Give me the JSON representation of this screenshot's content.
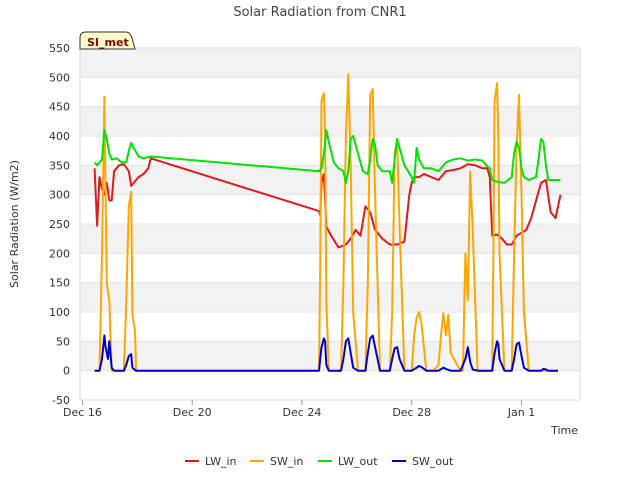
{
  "chart_data": {
    "type": "line",
    "title": "Solar Radiation from CNR1",
    "xlabel": "Time",
    "ylabel": "Solar Radiation (W/m2)",
    "station_label": "SI_met",
    "ylim": [
      -50,
      550
    ],
    "yticks": [
      -50,
      0,
      50,
      100,
      150,
      200,
      250,
      300,
      350,
      400,
      450,
      500,
      550
    ],
    "xlim": [
      -0.1,
      20.4
    ],
    "xticks": [
      {
        "value": 0,
        "label": "Dec 16"
      },
      {
        "value": 4.5,
        "label": "Dec 20"
      },
      {
        "value": 9,
        "label": "Dec 24"
      },
      {
        "value": 13.5,
        "label": "Dec 28"
      },
      {
        "value": 18,
        "label": "Jan 1"
      }
    ],
    "grid": true,
    "legend_position": "bottom",
    "series": [
      {
        "name": "LW_in",
        "color": "#e31a1c",
        "x": [
          0.5,
          0.6,
          0.7,
          0.75,
          0.8,
          0.9,
          1.0,
          1.1,
          1.2,
          1.3,
          1.5,
          1.7,
          1.9,
          2.0,
          2.1,
          2.3,
          2.5,
          2.6,
          2.7,
          2.8,
          9.7,
          9.75,
          9.8,
          9.9,
          10.0,
          10.2,
          10.5,
          10.8,
          11.0,
          11.2,
          11.4,
          11.6,
          11.8,
          12.0,
          12.3,
          12.6,
          12.9,
          13.2,
          13.4,
          13.5,
          13.6,
          13.8,
          14.0,
          14.3,
          14.6,
          14.9,
          15.2,
          15.5,
          15.8,
          16.1,
          16.4,
          16.6,
          16.7,
          16.8,
          17.0,
          17.2,
          17.4,
          17.6,
          17.8,
          18.0,
          18.2,
          18.4,
          18.6,
          18.8,
          19.0,
          19.2,
          19.4,
          19.6
        ],
        "values": [
          345,
          247,
          330,
          320,
          310,
          300,
          320,
          290,
          290,
          340,
          350,
          352,
          340,
          315,
          320,
          330,
          335,
          340,
          345,
          362,
          272,
          265,
          320,
          335,
          245,
          230,
          210,
          215,
          225,
          240,
          230,
          280,
          270,
          240,
          225,
          215,
          215,
          220,
          300,
          320,
          330,
          330,
          335,
          330,
          325,
          340,
          342,
          345,
          352,
          350,
          345,
          345,
          330,
          230,
          232,
          225,
          215,
          215,
          230,
          235,
          240,
          260,
          290,
          320,
          325,
          270,
          260,
          300
        ]
      },
      {
        "name": "SW_in",
        "color": "#ffa500",
        "x": [
          0.5,
          0.7,
          0.8,
          0.9,
          0.95,
          1.0,
          1.05,
          1.1,
          1.2,
          1.3,
          1.5,
          1.7,
          1.8,
          1.9,
          2.0,
          2.05,
          2.1,
          2.15,
          2.2,
          2.3,
          2.5,
          9.6,
          9.7,
          9.75,
          9.8,
          9.9,
          9.95,
          10.0,
          10.1,
          10.3,
          10.6,
          10.7,
          10.8,
          10.9,
          11.0,
          11.1,
          11.3,
          11.6,
          11.7,
          11.8,
          11.9,
          12.0,
          12.2,
          12.6,
          12.7,
          12.8,
          12.9,
          13.0,
          13.2,
          13.5,
          13.6,
          13.7,
          13.8,
          13.9,
          14.1,
          14.4,
          14.6,
          14.7,
          14.8,
          14.9,
          15.0,
          15.1,
          15.5,
          15.6,
          15.7,
          15.8,
          15.9,
          16.0,
          16.2,
          16.8,
          16.85,
          16.9,
          17.0,
          17.05,
          17.1,
          17.3,
          17.6,
          17.7,
          17.8,
          17.9,
          18.0,
          18.1,
          18.3,
          18.7,
          18.8,
          18.9,
          19.0,
          19.1,
          19.2,
          19.3,
          19.5
        ],
        "values": [
          0,
          0,
          200,
          467,
          300,
          150,
          135,
          120,
          0,
          0,
          0,
          0,
          120,
          280,
          305,
          100,
          80,
          70,
          0,
          0,
          0,
          0,
          0,
          180,
          460,
          473,
          400,
          120,
          0,
          0,
          0,
          150,
          400,
          505,
          350,
          100,
          0,
          0,
          150,
          470,
          480,
          300,
          0,
          0,
          100,
          370,
          393,
          250,
          0,
          0,
          60,
          90,
          100,
          80,
          0,
          0,
          10,
          60,
          98,
          60,
          95,
          30,
          0,
          0,
          200,
          120,
          340,
          240,
          0,
          0,
          200,
          460,
          490,
          400,
          200,
          0,
          0,
          200,
          380,
          470,
          300,
          100,
          0,
          0,
          0,
          0,
          0,
          0,
          0,
          0,
          0
        ]
      },
      {
        "name": "LW_out",
        "color": "#00e400",
        "x": [
          0.5,
          0.6,
          0.8,
          0.9,
          1.0,
          1.1,
          1.2,
          1.4,
          1.6,
          1.8,
          1.9,
          2.0,
          2.1,
          2.3,
          2.5,
          2.8,
          9.7,
          9.8,
          9.9,
          10.0,
          10.1,
          10.3,
          10.5,
          10.7,
          10.8,
          10.9,
          11.0,
          11.1,
          11.3,
          11.5,
          11.7,
          11.8,
          11.9,
          12.0,
          12.1,
          12.3,
          12.6,
          12.7,
          12.8,
          12.9,
          13.0,
          13.2,
          13.5,
          13.6,
          13.7,
          13.8,
          14.0,
          14.3,
          14.6,
          14.9,
          15.2,
          15.5,
          15.8,
          16.1,
          16.4,
          16.6,
          16.7,
          16.8,
          17.0,
          17.3,
          17.6,
          17.7,
          17.8,
          17.9,
          18.0,
          18.1,
          18.3,
          18.6,
          18.7,
          18.8,
          18.9,
          19.0,
          19.1,
          19.3,
          19.5,
          19.6
        ],
        "values": [
          355,
          350,
          360,
          410,
          395,
          370,
          360,
          362,
          355,
          355,
          375,
          388,
          380,
          365,
          362,
          365,
          340,
          345,
          370,
          410,
          390,
          355,
          345,
          340,
          320,
          340,
          395,
          400,
          370,
          340,
          335,
          360,
          395,
          385,
          350,
          340,
          340,
          320,
          360,
          395,
          380,
          350,
          330,
          320,
          380,
          360,
          345,
          345,
          340,
          355,
          360,
          362,
          358,
          360,
          358,
          348,
          345,
          325,
          322,
          320,
          330,
          370,
          390,
          380,
          345,
          330,
          325,
          330,
          360,
          395,
          390,
          350,
          325,
          325,
          325,
          325
        ]
      },
      {
        "name": "SW_out",
        "color": "#0000cc",
        "x": [
          0.5,
          0.7,
          0.8,
          0.9,
          0.95,
          1.0,
          1.05,
          1.1,
          1.2,
          1.3,
          1.5,
          1.7,
          1.8,
          1.9,
          2.0,
          2.05,
          2.1,
          2.2,
          2.3,
          2.5,
          9.6,
          9.7,
          9.75,
          9.8,
          9.9,
          9.95,
          10.0,
          10.1,
          10.3,
          10.6,
          10.7,
          10.8,
          10.9,
          11.0,
          11.1,
          11.3,
          11.6,
          11.7,
          11.8,
          11.9,
          12.0,
          12.2,
          12.6,
          12.7,
          12.8,
          12.9,
          13.0,
          13.2,
          13.5,
          13.7,
          13.8,
          13.9,
          14.1,
          14.4,
          14.6,
          14.8,
          14.9,
          15.1,
          15.5,
          15.7,
          15.8,
          15.9,
          16.0,
          16.2,
          16.8,
          16.9,
          17.0,
          17.05,
          17.1,
          17.3,
          17.6,
          17.7,
          17.8,
          17.9,
          18.0,
          18.1,
          18.3,
          18.7,
          18.8,
          18.9,
          19.0,
          19.1,
          19.3,
          19.5
        ],
        "values": [
          0,
          0,
          20,
          60,
          40,
          30,
          20,
          50,
          5,
          0,
          0,
          0,
          10,
          25,
          28,
          5,
          3,
          0,
          0,
          0,
          0,
          0,
          20,
          40,
          55,
          50,
          10,
          0,
          0,
          0,
          20,
          50,
          55,
          30,
          5,
          0,
          0,
          30,
          55,
          60,
          40,
          0,
          0,
          20,
          38,
          40,
          20,
          0,
          0,
          5,
          8,
          6,
          0,
          0,
          0,
          5,
          3,
          0,
          0,
          20,
          40,
          15,
          2,
          0,
          0,
          30,
          50,
          45,
          20,
          0,
          0,
          20,
          45,
          48,
          25,
          5,
          0,
          0,
          0,
          3,
          2,
          0,
          0,
          0
        ]
      }
    ]
  }
}
